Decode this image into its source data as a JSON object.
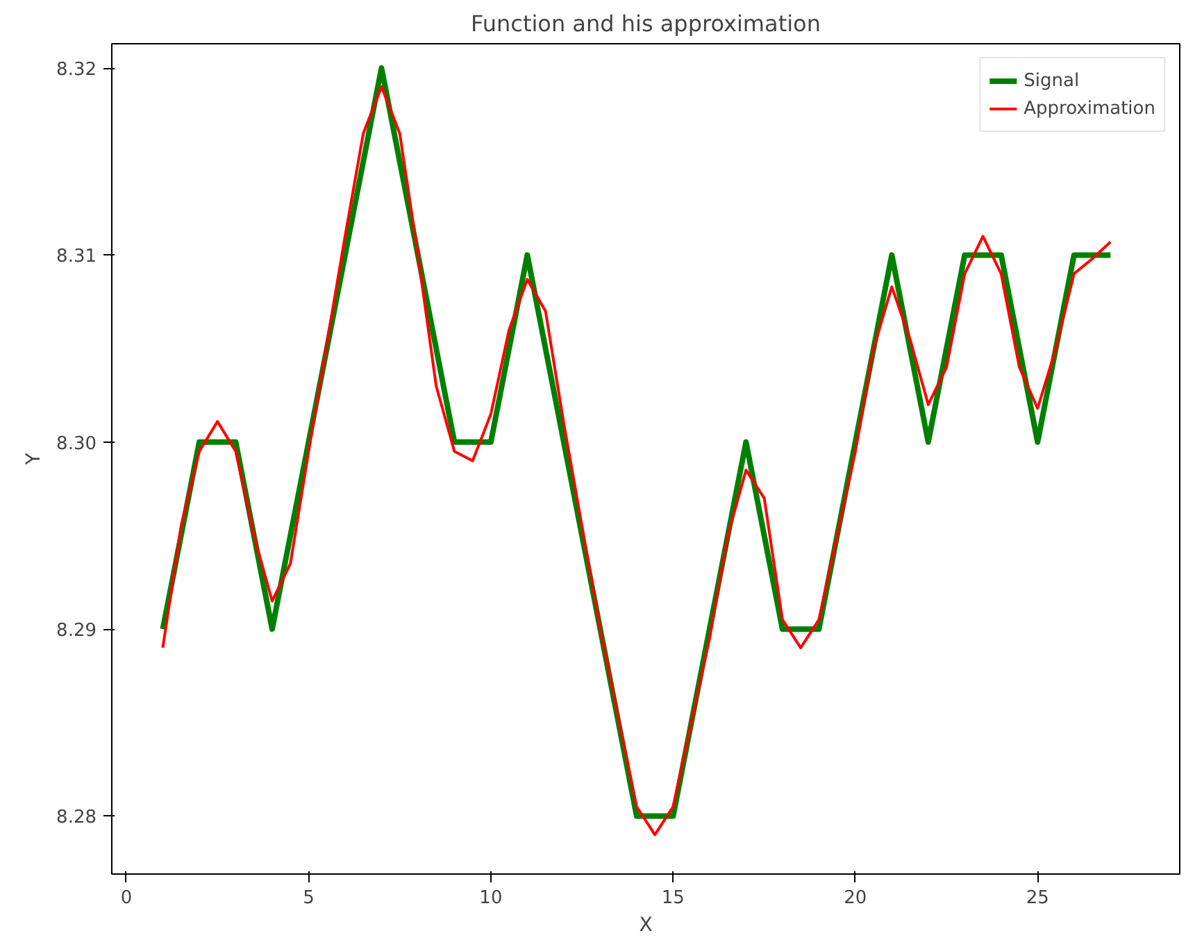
{
  "chart_data": {
    "type": "line",
    "title": "Function and his approximation",
    "xlabel": "X",
    "ylabel": "Y",
    "xlim": [
      -0.4,
      28.9
    ],
    "ylim": [
      8.2769,
      8.3213
    ],
    "xticks": [
      0,
      5,
      10,
      15,
      20,
      25
    ],
    "yticks": [
      {
        "value": 8.28,
        "label": "8.28"
      },
      {
        "value": 8.29,
        "label": "8.29"
      },
      {
        "value": 8.3,
        "label": "8.30"
      },
      {
        "value": 8.31,
        "label": "8.31"
      },
      {
        "value": 8.32,
        "label": "8.32"
      }
    ],
    "grid": false,
    "legend": "top right",
    "series": [
      {
        "name": "Signal",
        "color": "#008000",
        "x": [
          1,
          2,
          3,
          4,
          5,
          6,
          7,
          8,
          9,
          10,
          11,
          12,
          13,
          14,
          15,
          16,
          17,
          18,
          19,
          20,
          21,
          22,
          23,
          24,
          25,
          26,
          27
        ],
        "values": [
          8.29,
          8.3,
          8.3,
          8.29,
          8.3,
          8.31,
          8.32,
          8.31,
          8.3,
          8.3,
          8.31,
          8.3,
          8.29,
          8.28,
          8.28,
          8.29,
          8.3,
          8.29,
          8.29,
          8.3,
          8.31,
          8.3,
          8.31,
          8.31,
          8.3,
          8.31,
          8.31
        ]
      },
      {
        "name": "Approximation",
        "color": "#ff0000",
        "x": [
          1,
          1.5,
          2,
          2.5,
          3,
          3.5,
          4,
          4.5,
          5,
          6,
          6.5,
          7,
          7.5,
          8,
          8.5,
          9,
          9.5,
          10,
          10.5,
          11,
          11.5,
          12,
          13,
          14,
          14.5,
          15,
          16,
          16.5,
          17,
          17.5,
          18,
          18.5,
          19,
          20,
          20.5,
          21,
          21.5,
          22,
          22.5,
          23,
          23.5,
          24,
          24.5,
          25,
          25.5,
          26,
          26.5,
          27
        ],
        "values": [
          8.289,
          8.2955,
          8.2995,
          8.3011,
          8.2995,
          8.295,
          8.2915,
          8.2935,
          8.2995,
          8.311,
          8.3165,
          8.319,
          8.3165,
          8.31,
          8.303,
          8.2995,
          8.299,
          8.3015,
          8.306,
          8.3087,
          8.307,
          8.301,
          8.29,
          8.2805,
          8.279,
          8.2805,
          8.2895,
          8.295,
          8.2985,
          8.297,
          8.2905,
          8.289,
          8.2905,
          8.2995,
          8.305,
          8.3083,
          8.3055,
          8.302,
          8.304,
          8.309,
          8.311,
          8.309,
          8.304,
          8.3018,
          8.305,
          8.309,
          8.3098,
          8.3107
        ]
      }
    ]
  }
}
